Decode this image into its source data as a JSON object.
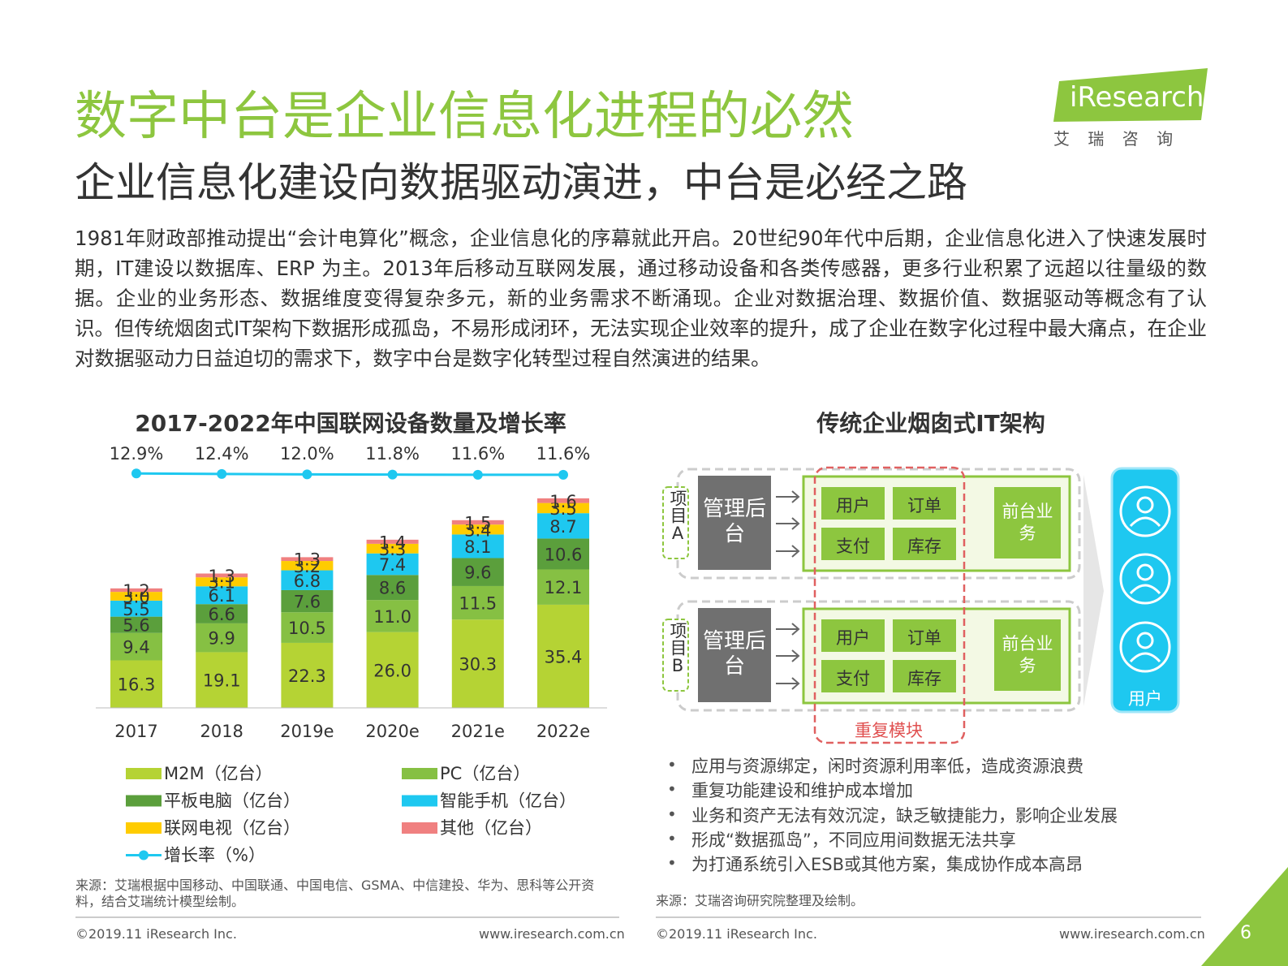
{
  "header": {
    "title": "数字中台是企业信息化进程的必然",
    "subtitle": "企业信息化建设向数据驱动演进，中台是必经之路",
    "logo": {
      "brand": "iResearch",
      "tagline": "艾 瑞 咨 询"
    }
  },
  "body": "1981年财政部推动提出“会计电算化”概念，企业信息化的序幕就此开启。20世纪90年代中后期，企业信息化进入了快速发展时期，IT建设以数据库、ERP 为主。2013年后移动互联网发展，通过移动设备和各类传感器，更多行业积累了远超以往量级的数据。企业的业务形态、数据维度变得复杂多元，新的业务需求不断涌现。企业对数据治理、数据价值、数据驱动等概念有了认识。但传统烟囱式IT架构下数据形成孤岛，不易形成闭环，无法实现企业效率的提升，成了企业在数字化过程中最大痛点，在企业对数据驱动力日益迫切的需求下，数字中台是数字化转型过程自然演进的结果。",
  "chart_data": {
    "type": "bar",
    "stacked": true,
    "title": "2017-2022年中国联网设备数量及增长率",
    "categories": [
      "2017",
      "2018",
      "2019e",
      "2020e",
      "2021e",
      "2022e"
    ],
    "series": [
      {
        "name": "M2M（亿台）",
        "color": "#b5d334",
        "values": [
          16.3,
          19.1,
          22.3,
          26.0,
          30.3,
          35.4
        ],
        "value_labels": [
          "16.3",
          "19.1",
          "22.3",
          "26.0",
          "30.3",
          "35.4"
        ]
      },
      {
        "name": "PC（亿台）",
        "color": "#86c043",
        "values": [
          9.4,
          9.9,
          10.5,
          11.0,
          11.5,
          12.1
        ],
        "value_labels": [
          "9.4",
          "9.9",
          "10.5",
          "11.0",
          "11.5",
          "12.1"
        ]
      },
      {
        "name": "平板电脑（亿台）",
        "color": "#5b9f3c",
        "values": [
          5.6,
          6.6,
          7.6,
          8.6,
          9.6,
          10.6
        ],
        "value_labels": [
          "5.6",
          "6.6",
          "7.6",
          "8.6",
          "9.6",
          "10.6"
        ]
      },
      {
        "name": "智能手机（亿台）",
        "color": "#1ec8f0",
        "values": [
          5.5,
          6.1,
          6.8,
          7.4,
          8.1,
          8.7
        ],
        "value_labels": [
          "5.5",
          "6.1",
          "6.8",
          "7.4",
          "8.1",
          "8.7"
        ]
      },
      {
        "name": "联网电视（亿台）",
        "color": "#ffcc00",
        "values": [
          3.0,
          3.1,
          3.2,
          3.3,
          3.4,
          3.5
        ],
        "value_labels": [
          "3.0",
          "3.1",
          "3.2",
          "3.3",
          "3.4",
          "3.5"
        ]
      },
      {
        "name": "其他（亿台）",
        "color": "#f08080",
        "values": [
          1.2,
          1.3,
          1.3,
          1.4,
          1.5,
          1.6
        ],
        "value_labels": [
          "1.2",
          "1.3",
          "1.3",
          "1.4",
          "1.5",
          "1.6"
        ]
      },
      {
        "name": "增长率（%）",
        "type": "line",
        "axis": "y2",
        "color": "#1ec8f0",
        "values": [
          12.9,
          12.4,
          12.0,
          11.8,
          11.6,
          11.6
        ],
        "value_labels": [
          "12.9%",
          "12.4%",
          "12.0%",
          "11.8%",
          "11.6%",
          "11.6%"
        ]
      }
    ],
    "source": "来源：艾瑞根据中国移动、中国联通、中国电信、GSMA、中信建投、华为、思科等公开资料，结合艾瑞统计模型绘制。"
  },
  "diagram": {
    "title": "传统企业烟囱式IT架构",
    "projects": [
      {
        "label": "项目A",
        "backend": "管理后台",
        "modules": [
          "用户",
          "订单",
          "支付",
          "库存"
        ],
        "front": "前台业务"
      },
      {
        "label": "项目B",
        "backend": "管理后台",
        "modules": [
          "用户",
          "订单",
          "支付",
          "库存"
        ],
        "front": "前台业务"
      }
    ],
    "duplicate": "重复模块",
    "user": "用户",
    "bullets": [
      "应用与资源绑定，闲时资源利用率低，造成资源浪费",
      "重复功能建设和维护成本增加",
      "业务和资产无法有效沉淀，缺乏敏捷能力，影响企业发展",
      "形成“数据孤岛”，不同应用间数据无法共享",
      "为打通系统引入ESB或其他方案，集成协作成本高昂"
    ],
    "source": "来源：艾瑞咨询研究院整理及绘制。"
  },
  "footer": {
    "left": {
      "copyright": "©2019.11 iResearch Inc.",
      "url": "www.iresearch.com.cn"
    },
    "right": {
      "copyright": "©2019.11 iResearch Inc.",
      "url": "www.iresearch.com.cn"
    },
    "page": "6"
  }
}
